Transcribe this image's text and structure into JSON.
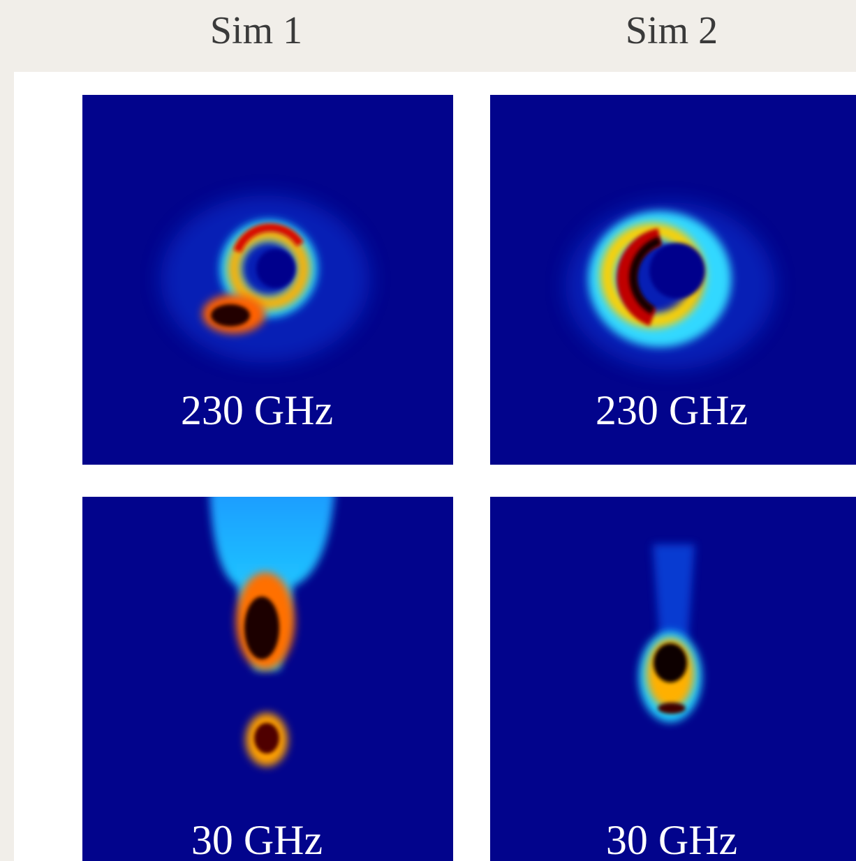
{
  "columns": [
    {
      "title": "Sim 1",
      "panels": [
        {
          "label": "230 GHz"
        },
        {
          "label": "30 GHz"
        }
      ]
    },
    {
      "title": "Sim 2",
      "panels": [
        {
          "label": "230 GHz"
        },
        {
          "label": "30 GHz"
        }
      ]
    }
  ]
}
